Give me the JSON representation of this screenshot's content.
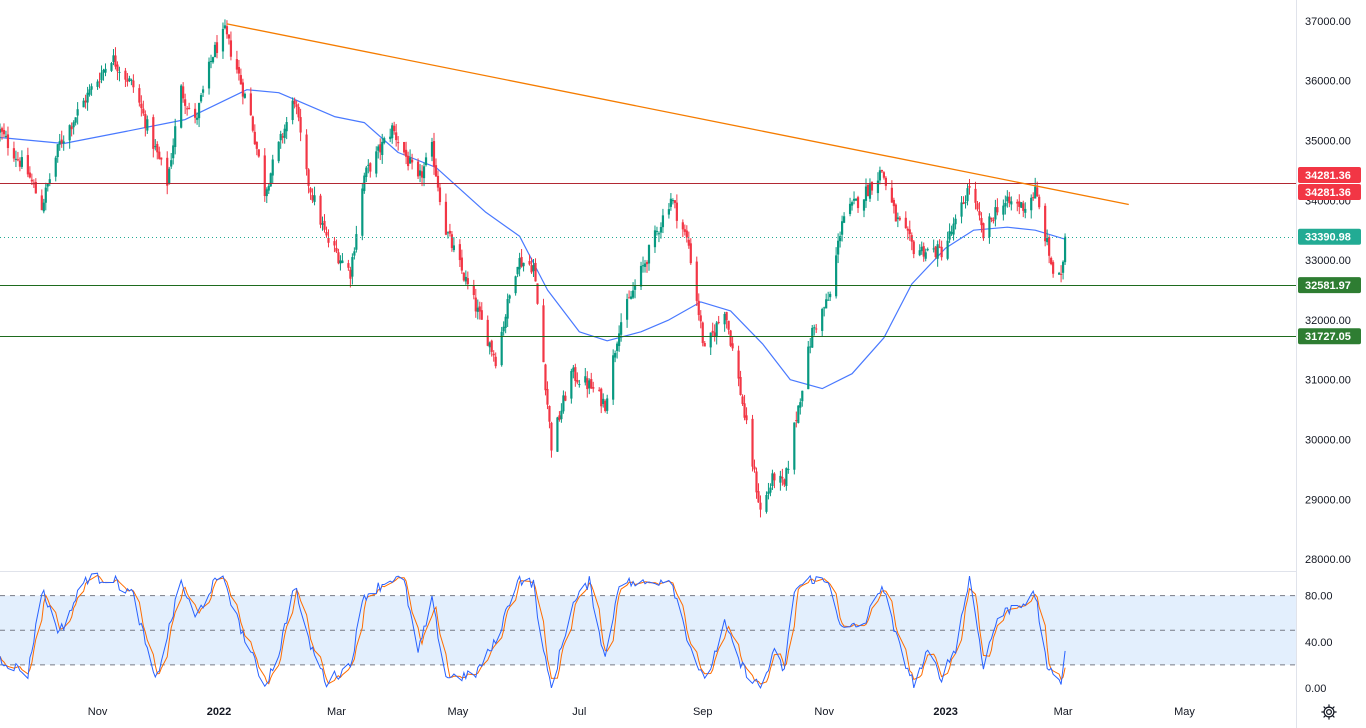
{
  "chart_data": {
    "type": "candlestick",
    "price_axis": {
      "ticks": [
        "37000.00",
        "36000.00",
        "35000.00",
        "34000.00",
        "33000.00",
        "32000.00",
        "31000.00",
        "30000.00",
        "29000.00",
        "28000.00"
      ],
      "range": [
        27800,
        37350
      ]
    },
    "time_axis": {
      "ticks": [
        {
          "label": "Nov",
          "date": "2021-11-01",
          "bold": false
        },
        {
          "label": "2022",
          "date": "2022-01-01",
          "bold": true
        },
        {
          "label": "Mar",
          "date": "2022-03-01",
          "bold": false
        },
        {
          "label": "May",
          "date": "2022-05-01",
          "bold": false
        },
        {
          "label": "Jul",
          "date": "2022-07-01",
          "bold": false
        },
        {
          "label": "Sep",
          "date": "2022-09-01",
          "bold": false
        },
        {
          "label": "Nov",
          "date": "2022-11-01",
          "bold": false
        },
        {
          "label": "2023",
          "date": "2023-01-01",
          "bold": true
        },
        {
          "label": "Mar",
          "date": "2023-03-01",
          "bold": false
        },
        {
          "label": "May",
          "date": "2023-05-01",
          "bold": false
        }
      ],
      "range": [
        "2021-09-13",
        "2023-06-26"
      ]
    },
    "price_path": [
      [
        "2021-09-13",
        35150
      ],
      [
        "2021-09-27",
        34450
      ],
      [
        "2021-10-04",
        33900
      ],
      [
        "2021-10-13",
        34950
      ],
      [
        "2021-10-26",
        35700
      ],
      [
        "2021-11-08",
        36400
      ],
      [
        "2021-11-19",
        35900
      ],
      [
        "2021-11-30",
        34850
      ],
      [
        "2021-12-06",
        34300
      ],
      [
        "2021-12-13",
        35850
      ],
      [
        "2021-12-20",
        35300
      ],
      [
        "2021-12-29",
        36450
      ],
      [
        "2022-01-04",
        36800
      ],
      [
        "2022-01-10",
        36200
      ],
      [
        "2022-01-17",
        35400
      ],
      [
        "2022-01-24",
        34150
      ],
      [
        "2022-01-31",
        34900
      ],
      [
        "2022-02-08",
        35700
      ],
      [
        "2022-02-14",
        34400
      ],
      [
        "2022-02-24",
        33350
      ],
      [
        "2022-03-08",
        32800
      ],
      [
        "2022-03-15",
        34400
      ],
      [
        "2022-03-29",
        35200
      ],
      [
        "2022-04-04",
        34800
      ],
      [
        "2022-04-11",
        34300
      ],
      [
        "2022-04-18",
        34850
      ],
      [
        "2022-04-25",
        33500
      ],
      [
        "2022-05-09",
        32300
      ],
      [
        "2022-05-20",
        31350
      ],
      [
        "2022-05-31",
        33000
      ],
      [
        "2022-06-08",
        32900
      ],
      [
        "2022-06-13",
        31300
      ],
      [
        "2022-06-17",
        29900
      ],
      [
        "2022-06-27",
        31100
      ],
      [
        "2022-07-06",
        30900
      ],
      [
        "2022-07-14",
        30600
      ],
      [
        "2022-07-21",
        31900
      ],
      [
        "2022-08-01",
        32800
      ],
      [
        "2022-08-16",
        34050
      ],
      [
        "2022-08-25",
        33250
      ],
      [
        "2022-09-02",
        31450
      ],
      [
        "2022-09-12",
        32200
      ],
      [
        "2022-09-20",
        30800
      ],
      [
        "2022-09-30",
        28800
      ],
      [
        "2022-10-07",
        29400
      ],
      [
        "2022-10-12",
        29200
      ],
      [
        "2022-10-17",
        30200
      ],
      [
        "2022-10-26",
        31800
      ],
      [
        "2022-11-04",
        32400
      ],
      [
        "2022-11-10",
        33700
      ],
      [
        "2022-11-21",
        34100
      ],
      [
        "2022-11-30",
        34500
      ],
      [
        "2022-12-07",
        33700
      ],
      [
        "2022-12-16",
        33200
      ],
      [
        "2022-12-23",
        33150
      ],
      [
        "2022-12-30",
        33150
      ],
      [
        "2023-01-06",
        33600
      ],
      [
        "2023-01-13",
        34250
      ],
      [
        "2023-01-20",
        33400
      ],
      [
        "2023-01-27",
        33900
      ],
      [
        "2023-02-03",
        33950
      ],
      [
        "2023-02-10",
        33900
      ],
      [
        "2023-02-15",
        34150
      ],
      [
        "2023-02-21",
        33250
      ],
      [
        "2023-02-24",
        32800
      ],
      [
        "2023-02-28",
        32650
      ],
      [
        "2023-03-02",
        33390.98
      ]
    ],
    "moving_average": [
      [
        "2021-09-13",
        35050
      ],
      [
        "2021-10-15",
        34950
      ],
      [
        "2021-11-15",
        35150
      ],
      [
        "2021-12-15",
        35350
      ],
      [
        "2022-01-15",
        35850
      ],
      [
        "2022-01-31",
        35800
      ],
      [
        "2022-02-28",
        35400
      ],
      [
        "2022-03-15",
        35300
      ],
      [
        "2022-04-01",
        34800
      ],
      [
        "2022-04-20",
        34550
      ],
      [
        "2022-05-15",
        33800
      ],
      [
        "2022-06-01",
        33400
      ],
      [
        "2022-06-15",
        32500
      ],
      [
        "2022-07-01",
        31800
      ],
      [
        "2022-07-15",
        31650
      ],
      [
        "2022-08-01",
        31800
      ],
      [
        "2022-08-15",
        32000
      ],
      [
        "2022-08-31",
        32300
      ],
      [
        "2022-09-15",
        32150
      ],
      [
        "2022-10-01",
        31600
      ],
      [
        "2022-10-15",
        31000
      ],
      [
        "2022-10-31",
        30850
      ],
      [
        "2022-11-15",
        31100
      ],
      [
        "2022-12-01",
        31700
      ],
      [
        "2022-12-15",
        32600
      ],
      [
        "2023-01-01",
        33200
      ],
      [
        "2023-01-15",
        33500
      ],
      [
        "2023-02-01",
        33550
      ],
      [
        "2023-02-15",
        33500
      ],
      [
        "2023-03-02",
        33350
      ]
    ],
    "trendline": [
      [
        "2022-01-05",
        36950
      ],
      [
        "2023-04-03",
        33930
      ]
    ],
    "horizontal_levels": [
      {
        "value": 34281.36,
        "label": "34281.36",
        "color": "#b22833",
        "style": "solid"
      },
      {
        "value": 33390.98,
        "label": "33390.98",
        "color": "#22ab94",
        "style": "dotted",
        "last_price": true
      },
      {
        "value": 32581.97,
        "label": "32581.97",
        "color": "#1e6b1e",
        "style": "solid"
      },
      {
        "value": 31727.05,
        "label": "31727.05",
        "color": "#1e6b1e",
        "style": "solid"
      }
    ],
    "badges": [
      {
        "label": "34281.36",
        "color": "#f23645",
        "value": 34281.36,
        "slot": "upper"
      },
      {
        "label": "34281.36",
        "color": "#f23645",
        "value": 34281.36,
        "slot": "lower"
      },
      {
        "label": "33390.98",
        "color": "#22ab94",
        "value": 33390.98,
        "slot": "center"
      },
      {
        "label": "32581.97",
        "color": "#2e7d32",
        "value": 32581.97,
        "slot": "center"
      },
      {
        "label": "31727.05",
        "color": "#2e7d32",
        "value": 31727.05,
        "slot": "center"
      }
    ],
    "oscillator": {
      "type": "stochastic",
      "ticks": [
        "80.00",
        "40.00",
        "0.00"
      ],
      "range": [
        -7,
        97
      ],
      "levels": [
        80,
        50,
        20
      ],
      "band": [
        20,
        80
      ],
      "k_path": [
        [
          "2021-09-13",
          25
        ],
        [
          "2021-09-27",
          12
        ],
        [
          "2021-10-04",
          85
        ],
        [
          "2021-10-13",
          48
        ],
        [
          "2021-10-26",
          95
        ],
        [
          "2021-11-08",
          95
        ],
        [
          "2021-11-19",
          80
        ],
        [
          "2021-11-30",
          5
        ],
        [
          "2021-12-13",
          92
        ],
        [
          "2021-12-20",
          60
        ],
        [
          "2021-12-29",
          90
        ],
        [
          "2022-01-04",
          93
        ],
        [
          "2022-01-10",
          60
        ],
        [
          "2022-01-17",
          30
        ],
        [
          "2022-01-24",
          2
        ],
        [
          "2022-01-31",
          30
        ],
        [
          "2022-02-08",
          90
        ],
        [
          "2022-02-14",
          45
        ],
        [
          "2022-02-24",
          5
        ],
        [
          "2022-03-08",
          20
        ],
        [
          "2022-03-15",
          80
        ],
        [
          "2022-03-29",
          95
        ],
        [
          "2022-04-04",
          92
        ],
        [
          "2022-04-11",
          30
        ],
        [
          "2022-04-18",
          75
        ],
        [
          "2022-04-25",
          10
        ],
        [
          "2022-05-09",
          10
        ],
        [
          "2022-05-20",
          40
        ],
        [
          "2022-05-31",
          95
        ],
        [
          "2022-06-08",
          90
        ],
        [
          "2022-06-13",
          30
        ],
        [
          "2022-06-17",
          0
        ],
        [
          "2022-06-27",
          70
        ],
        [
          "2022-07-06",
          92
        ],
        [
          "2022-07-14",
          25
        ],
        [
          "2022-07-21",
          92
        ],
        [
          "2022-08-01",
          90
        ],
        [
          "2022-08-16",
          95
        ],
        [
          "2022-08-25",
          40
        ],
        [
          "2022-09-02",
          4
        ],
        [
          "2022-09-12",
          55
        ],
        [
          "2022-09-20",
          20
        ],
        [
          "2022-09-30",
          0
        ],
        [
          "2022-10-07",
          30
        ],
        [
          "2022-10-12",
          15
        ],
        [
          "2022-10-17",
          85
        ],
        [
          "2022-10-26",
          95
        ],
        [
          "2022-11-04",
          90
        ],
        [
          "2022-11-10",
          50
        ],
        [
          "2022-11-21",
          55
        ],
        [
          "2022-11-30",
          90
        ],
        [
          "2022-12-07",
          45
        ],
        [
          "2022-12-16",
          3
        ],
        [
          "2022-12-23",
          30
        ],
        [
          "2022-12-30",
          10
        ],
        [
          "2023-01-06",
          35
        ],
        [
          "2023-01-13",
          95
        ],
        [
          "2023-01-20",
          20
        ],
        [
          "2023-01-27",
          60
        ],
        [
          "2023-02-03",
          70
        ],
        [
          "2023-02-10",
          75
        ],
        [
          "2023-02-15",
          80
        ],
        [
          "2023-02-21",
          20
        ],
        [
          "2023-02-24",
          8
        ],
        [
          "2023-02-28",
          5
        ],
        [
          "2023-03-02",
          35
        ]
      ]
    }
  }
}
